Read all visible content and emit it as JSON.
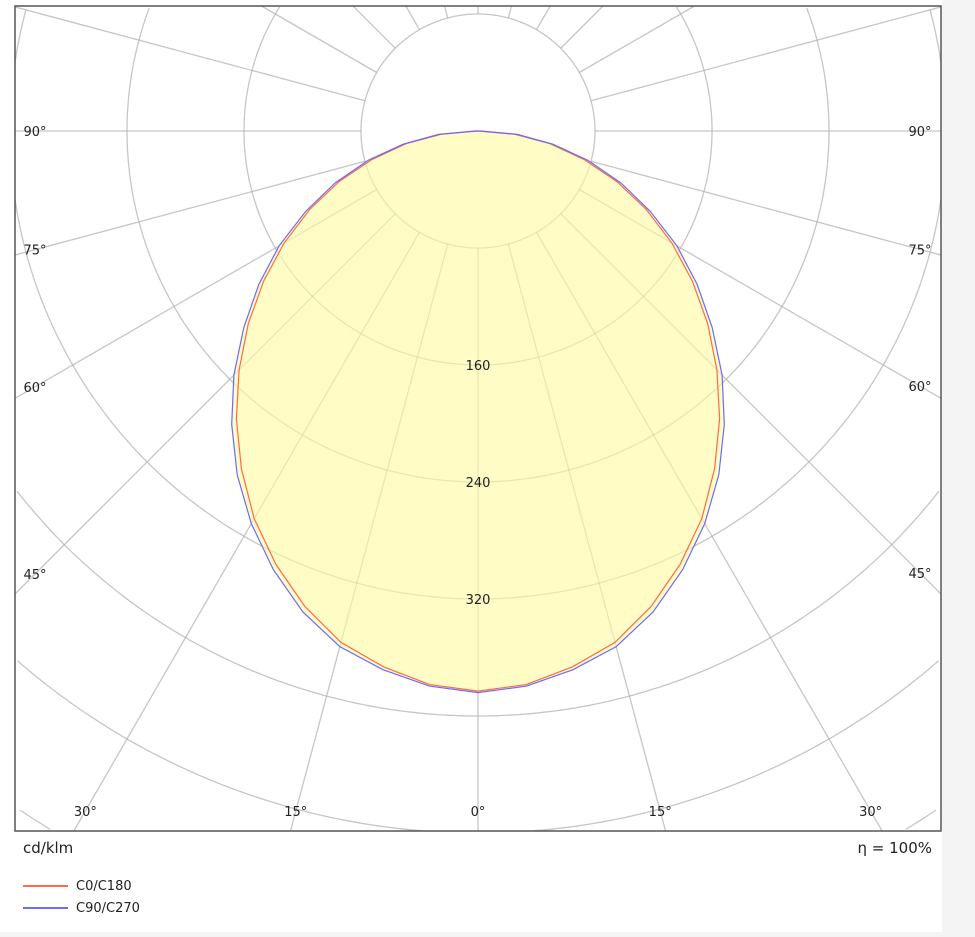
{
  "chart_data": {
    "type": "polar",
    "unit_label": "cd/klm",
    "efficiency_label": "η = 100%",
    "radial_ticks": [
      80,
      160,
      240,
      320,
      400,
      480,
      560,
      640,
      720
    ],
    "radial_tick_labels": [
      "160",
      "240",
      "320"
    ],
    "angle_labels": [
      {
        "angle": -90,
        "text": "90°"
      },
      {
        "angle": -75,
        "text": "75°"
      },
      {
        "angle": -60,
        "text": "60°"
      },
      {
        "angle": -45,
        "text": "45°"
      },
      {
        "angle": -30,
        "text": "30°"
      },
      {
        "angle": -15,
        "text": "15°"
      },
      {
        "angle": 0,
        "text": "0°"
      },
      {
        "angle": 15,
        "text": "15°"
      },
      {
        "angle": 30,
        "text": "30°"
      },
      {
        "angle": 45,
        "text": "45°"
      },
      {
        "angle": 60,
        "text": "60°"
      },
      {
        "angle": 75,
        "text": "75°"
      },
      {
        "angle": 90,
        "text": "90°"
      }
    ],
    "grid": true,
    "legend_position": "bottom-left",
    "angles": [
      0,
      5,
      10,
      15,
      20,
      25,
      30,
      35,
      40,
      45,
      50,
      55,
      60,
      65,
      70,
      75,
      80,
      85,
      90
    ],
    "series": [
      {
        "name": "C0/C180",
        "color": "#ff6a4a",
        "values": [
          383,
          380,
          372,
          362,
          346,
          327,
          306,
          282,
          257,
          231,
          205,
          179,
          153,
          127,
          101,
          75,
          50,
          25,
          0
        ]
      },
      {
        "name": "C90/C270",
        "color": "#6a6aff",
        "values": [
          384,
          381,
          374,
          365,
          350,
          331,
          310,
          287,
          262,
          236,
          209,
          183,
          157,
          130,
          104,
          78,
          52,
          27,
          2
        ]
      }
    ],
    "fill_color": "#fffcc0"
  }
}
